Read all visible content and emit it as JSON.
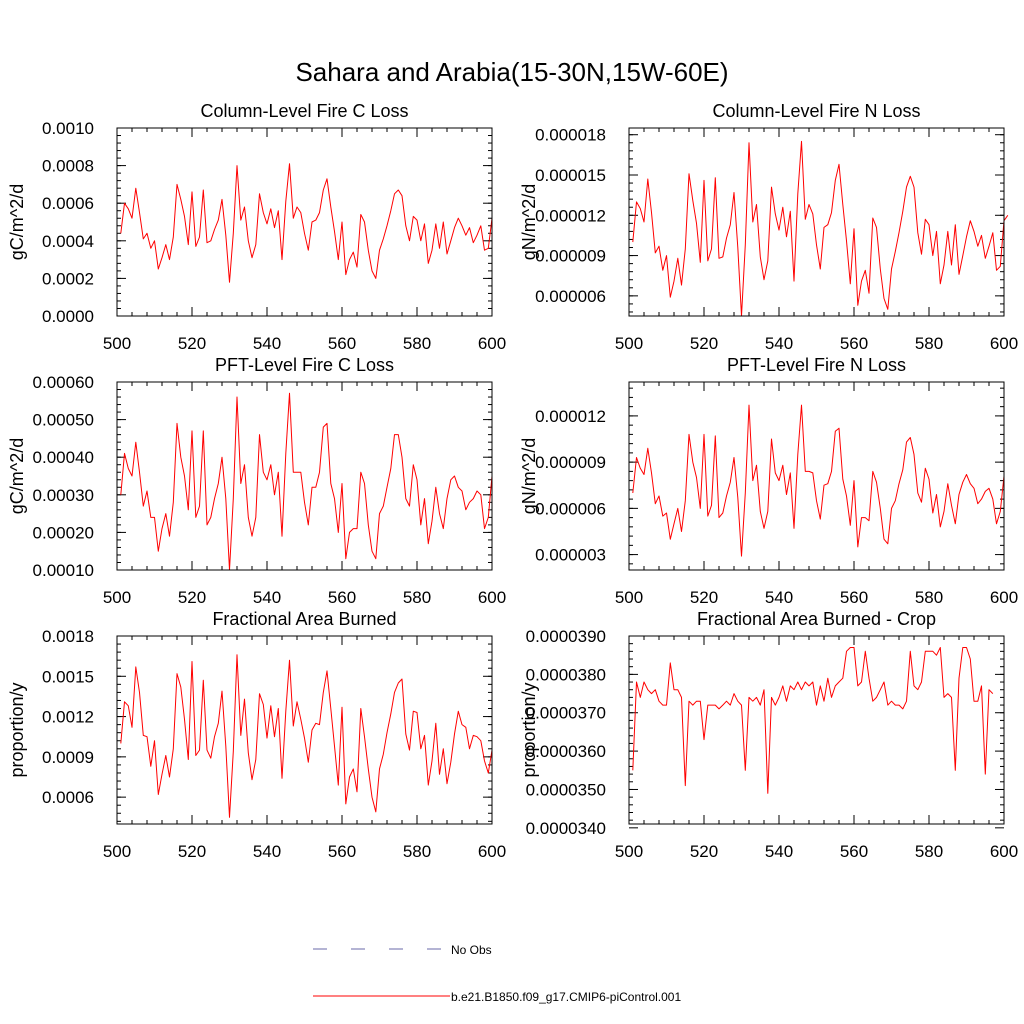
{
  "figure": {
    "title": "Sahara and Arabia(15-30N,15W-60E)"
  },
  "legend": {
    "entries": [
      {
        "label": "No Obs",
        "color": "#6a6aaa",
        "style": "dashed"
      },
      {
        "label": "b.e21.B1850.f09_g17.CMIP6-piControl.001",
        "color": "#ff0000",
        "style": "solid"
      }
    ]
  },
  "chart_data": [
    {
      "type": "line",
      "title": "Column-Level Fire C Loss",
      "xlabel": "",
      "ylabel": "gC/m^2/d",
      "xlim": [
        500,
        600
      ],
      "ylim": [
        0,
        0.001
      ],
      "x_ticks": [
        500,
        520,
        540,
        560,
        580,
        600
      ],
      "x_tick_labels": [
        "500",
        "520",
        "540",
        "560",
        "580",
        "600"
      ],
      "y_ticks": [
        0,
        0.0002,
        0.0004,
        0.0006,
        0.0008,
        0.001
      ],
      "y_tick_labels": [
        "0.0000",
        "0.0002",
        "0.0004",
        "0.0006",
        "0.0008",
        "0.0010"
      ],
      "x_start": 501,
      "series": [
        {
          "name": "b.e21.B1850.f09_g17.CMIP6-piControl.001",
          "color": "#ff0000",
          "values": [
            0.00044,
            0.0006,
            0.00057,
            0.00052,
            0.00068,
            0.00055,
            0.00041,
            0.00044,
            0.00036,
            0.0004,
            0.00025,
            0.00031,
            0.00038,
            0.0003,
            0.00042,
            0.0007,
            0.00062,
            0.00053,
            0.00038,
            0.00066,
            0.00037,
            0.00042,
            0.00067,
            0.00039,
            0.0004,
            0.00046,
            0.00051,
            0.00062,
            0.00043,
            0.00018,
            0.00044,
            0.0008,
            0.00051,
            0.00058,
            0.0004,
            0.00031,
            0.00038,
            0.00065,
            0.00055,
            0.00049,
            0.00057,
            0.00047,
            0.00056,
            0.0003,
            0.00061,
            0.00081,
            0.00052,
            0.00058,
            0.00055,
            0.00044,
            0.00035,
            0.0005,
            0.00051,
            0.00055,
            0.00067,
            0.00073,
            0.00058,
            0.00045,
            0.0003,
            0.0005,
            0.00022,
            0.0003,
            0.00034,
            0.00026,
            0.00054,
            0.0005,
            0.00035,
            0.00024,
            0.0002,
            0.00035,
            0.00041,
            0.00048,
            0.00056,
            0.00065,
            0.00067,
            0.00064,
            0.00048,
            0.0004,
            0.00053,
            0.00051,
            0.0004,
            0.00049,
            0.00028,
            0.00035,
            0.00049,
            0.00036,
            0.0005,
            0.00033,
            0.0004,
            0.00047,
            0.00052,
            0.00048,
            0.00043,
            0.00047,
            0.00039,
            0.00043,
            0.00048,
            0.00035,
            0.00036,
            0.00052
          ]
        }
      ]
    },
    {
      "type": "line",
      "title": "Column-Level Fire N Loss",
      "xlabel": "",
      "ylabel": "gN/m^2/d",
      "xlim": [
        500,
        600
      ],
      "ylim": [
        4.5e-06,
        1.85e-05
      ],
      "x_ticks": [
        500,
        520,
        540,
        560,
        580,
        600
      ],
      "x_tick_labels": [
        "500",
        "520",
        "540",
        "560",
        "580",
        "600"
      ],
      "y_ticks": [
        6e-06,
        9e-06,
        1.2e-05,
        1.5e-05,
        1.8e-05
      ],
      "y_tick_labels": [
        "0.000006",
        "0.000009",
        "0.000012",
        "0.000015",
        "0.000018"
      ],
      "x_start": 501,
      "series": [
        {
          "name": "b.e21.B1850.f09_g17.CMIP6-piControl.001",
          "color": "#ff0000",
          "values": [
            1e-05,
            1.3e-05,
            1.25e-05,
            1.15e-05,
            1.47e-05,
            1.22e-05,
            9.2e-06,
            9.7e-06,
            7.9e-06,
            9e-06,
            5.9e-06,
            7.1e-06,
            8.8e-06,
            6.8e-06,
            9.5e-06,
            1.51e-05,
            1.31e-05,
            1.14e-05,
            8.5e-06,
            1.46e-05,
            8.6e-06,
            9.5e-06,
            1.48e-05,
            8.8e-06,
            8.9e-06,
            1.03e-05,
            1.13e-05,
            1.37e-05,
            9.6e-06,
            4.5e-06,
            9.8e-06,
            1.74e-05,
            1.15e-05,
            1.28e-05,
            8.9e-06,
            7.2e-06,
            8.6e-06,
            1.41e-05,
            1.21e-05,
            1.09e-05,
            1.26e-05,
            1.04e-05,
            1.23e-05,
            7.1e-06,
            1.36e-05,
            1.75e-05,
            1.17e-05,
            1.28e-05,
            1.21e-05,
            9.8e-06,
            8e-06,
            1.11e-05,
            1.13e-05,
            1.22e-05,
            1.46e-05,
            1.58e-05,
            1.28e-05,
            1.01e-05,
            6.9e-06,
            1.1e-05,
            5.3e-06,
            7.1e-06,
            7.9e-06,
            6.2e-06,
            1.18e-05,
            1.11e-05,
            8e-06,
            5.8e-06,
            5e-06,
            8e-06,
            9.3e-06,
            1.07e-05,
            1.23e-05,
            1.41e-05,
            1.49e-05,
            1.41e-05,
            1.07e-05,
            9.1e-06,
            1.17e-05,
            1.13e-05,
            9e-06,
            1.08e-05,
            6.9e-06,
            8.3e-06,
            1.08e-05,
            8.3e-06,
            1.13e-05,
            7.6e-06,
            9e-06,
            1.04e-05,
            1.16e-05,
            1.08e-05,
            9.7e-06,
            1.05e-05,
            8.8e-06,
            9.7e-06,
            1.07e-05,
            7.9e-06,
            8.2e-06,
            1.16e-05,
            1.2e-05
          ]
        }
      ]
    },
    {
      "type": "line",
      "title": "PFT-Level Fire C Loss",
      "xlabel": "",
      "ylabel": "gC/m^2/d",
      "xlim": [
        500,
        600
      ],
      "ylim": [
        0.0001,
        0.0006
      ],
      "x_ticks": [
        500,
        520,
        540,
        560,
        580,
        600
      ],
      "x_tick_labels": [
        "500",
        "520",
        "540",
        "560",
        "580",
        "600"
      ],
      "y_ticks": [
        0.0001,
        0.0002,
        0.0003,
        0.0004,
        0.0005,
        0.0006
      ],
      "y_tick_labels": [
        "0.00010",
        "0.00020",
        "0.00030",
        "0.00040",
        "0.00050",
        "0.00060"
      ],
      "x_start": 501,
      "series": [
        {
          "name": "b.e21.B1850.f09_g17.CMIP6-piControl.001",
          "color": "#ff0000",
          "values": [
            0.0003,
            0.00041,
            0.00037,
            0.00035,
            0.00044,
            0.00036,
            0.00027,
            0.00031,
            0.00024,
            0.00024,
            0.00015,
            0.00021,
            0.00025,
            0.00019,
            0.00028,
            0.00049,
            0.0004,
            0.00035,
            0.00026,
            0.00047,
            0.00024,
            0.00027,
            0.00047,
            0.00022,
            0.00024,
            0.00029,
            0.00033,
            0.0004,
            0.00029,
            0.0001,
            0.00029,
            0.00056,
            0.00033,
            0.00038,
            0.00024,
            0.00019,
            0.00024,
            0.00046,
            0.00036,
            0.00034,
            0.00038,
            0.0003,
            0.00036,
            0.00019,
            0.00041,
            0.00057,
            0.00036,
            0.00036,
            0.00036,
            0.00028,
            0.00022,
            0.00032,
            0.00032,
            0.00036,
            0.00048,
            0.00049,
            0.00033,
            0.00029,
            0.0002,
            0.00033,
            0.00013,
            0.0002,
            0.00021,
            0.00021,
            0.00036,
            0.00033,
            0.00022,
            0.00015,
            0.00013,
            0.00025,
            0.00027,
            0.00032,
            0.00037,
            0.00046,
            0.00046,
            0.0004,
            0.00029,
            0.00027,
            0.00038,
            0.00034,
            0.00022,
            0.00029,
            0.00017,
            0.00023,
            0.00032,
            0.00025,
            0.00021,
            0.00029,
            0.00034,
            0.00035,
            0.00032,
            0.00031,
            0.00026,
            0.00028,
            0.00029,
            0.00031,
            0.0003,
            0.00021,
            0.00024,
            0.00035
          ]
        }
      ]
    },
    {
      "type": "line",
      "title": "PFT-Level Fire N Loss",
      "xlabel": "",
      "ylabel": "gN/m^2/d",
      "xlim": [
        500,
        600
      ],
      "ylim": [
        2e-06,
        1.42e-05
      ],
      "x_ticks": [
        500,
        520,
        540,
        560,
        580,
        600
      ],
      "x_tick_labels": [
        "500",
        "520",
        "540",
        "560",
        "580",
        "600"
      ],
      "y_ticks": [
        3e-06,
        6e-06,
        9e-06,
        1.2e-05
      ],
      "y_tick_labels": [
        "0.000003",
        "0.000006",
        "0.000009",
        "0.000012"
      ],
      "x_start": 501,
      "series": [
        {
          "name": "b.e21.B1850.f09_g17.CMIP6-piControl.001",
          "color": "#ff0000",
          "values": [
            7e-06,
            9.3e-06,
            8.6e-06,
            8.2e-06,
            9.9e-06,
            8.3e-06,
            6.3e-06,
            6.8e-06,
            5.5e-06,
            5.7e-06,
            4e-06,
            5e-06,
            6e-06,
            4.5e-06,
            6.5e-06,
            1.08e-05,
            9e-06,
            8e-06,
            6e-06,
            1.08e-05,
            5.5e-06,
            6.2e-06,
            1.07e-05,
            5.4e-06,
            5.7e-06,
            6.8e-06,
            7.7e-06,
            9.3e-06,
            6.7e-06,
            2.9e-06,
            7e-06,
            1.27e-05,
            7.8e-06,
            8.8e-06,
            5.8e-06,
            4.7e-06,
            5.8e-06,
            1.05e-05,
            8.3e-06,
            7.8e-06,
            8.8e-06,
            6.9e-06,
            8.3e-06,
            4.7e-06,
            9.5e-06,
            1.27e-05,
            8.4e-06,
            8.4e-06,
            8.3e-06,
            6.5e-06,
            5.3e-06,
            7.5e-06,
            7.6e-06,
            8.4e-06,
            1.1e-05,
            1.12e-05,
            7.9e-06,
            6.8e-06,
            4.9e-06,
            7.8e-06,
            3.5e-06,
            5.4e-06,
            5.4e-06,
            5.2e-06,
            8.4e-06,
            7.7e-06,
            6e-06,
            4e-06,
            3.7e-06,
            6e-06,
            6.5e-06,
            7.6e-06,
            8.5e-06,
            1.03e-05,
            1.06e-05,
            9.5e-06,
            7e-06,
            6.4e-06,
            8.6e-06,
            7.9e-06,
            5.7e-06,
            6.9e-06,
            4.8e-06,
            5.8e-06,
            7.6e-06,
            6.2e-06,
            5e-06,
            6.9e-06,
            7.7e-06,
            8.2e-06,
            7.6e-06,
            7.3e-06,
            6.3e-06,
            6.6e-06,
            7.1e-06,
            7.3e-06,
            6.6e-06,
            5e-06,
            5.8e-06,
            8.1e-06
          ]
        }
      ]
    },
    {
      "type": "line",
      "title": "Fractional Area Burned",
      "xlabel": "",
      "ylabel": "proportion/y",
      "xlim": [
        500,
        600
      ],
      "ylim": [
        0.0004,
        0.0018
      ],
      "x_ticks": [
        500,
        520,
        540,
        560,
        580,
        600
      ],
      "x_tick_labels": [
        "500",
        "520",
        "540",
        "560",
        "580",
        "600"
      ],
      "y_ticks": [
        0.0006,
        0.0009,
        0.0012,
        0.0015,
        0.0018
      ],
      "y_tick_labels": [
        "0.0006",
        "0.0009",
        "0.0012",
        "0.0015",
        "0.0018"
      ],
      "x_start": 501,
      "series": [
        {
          "name": "b.e21.B1850.f09_g17.CMIP6-piControl.001",
          "color": "#ff0000",
          "values": [
            0.001,
            0.00131,
            0.00128,
            0.00112,
            0.00157,
            0.00138,
            0.00106,
            0.00105,
            0.00083,
            0.00102,
            0.00062,
            0.00077,
            0.00091,
            0.00075,
            0.00096,
            0.00152,
            0.00142,
            0.00118,
            0.00088,
            0.00161,
            0.00091,
            0.00095,
            0.00147,
            0.00095,
            0.00089,
            0.00105,
            0.00115,
            0.00139,
            0.00098,
            0.00045,
            0.00094,
            0.00166,
            0.00106,
            0.00133,
            0.00093,
            0.00073,
            0.00088,
            0.00137,
            0.00129,
            0.00104,
            0.00128,
            0.00105,
            0.00126,
            0.00074,
            0.00124,
            0.00162,
            0.00113,
            0.00131,
            0.00118,
            0.00104,
            0.00086,
            0.0011,
            0.00115,
            0.00114,
            0.00138,
            0.00154,
            0.00126,
            0.00098,
            0.00069,
            0.00127,
            0.00055,
            0.00075,
            0.00081,
            0.00064,
            0.00126,
            0.00105,
            0.00081,
            0.0006,
            0.00049,
            0.00081,
            0.00092,
            0.00108,
            0.00122,
            0.00138,
            0.00145,
            0.00148,
            0.00107,
            0.00095,
            0.00124,
            0.00123,
            0.00096,
            0.00106,
            0.00069,
            0.00087,
            0.00115,
            0.00077,
            0.00096,
            0.0007,
            0.00086,
            0.00107,
            0.00124,
            0.00114,
            0.00112,
            0.00096,
            0.00106,
            0.00105,
            0.00102,
            0.00087,
            0.00078,
            0.00095
          ]
        }
      ]
    },
    {
      "type": "line",
      "title": "Fractional Area Burned - Crop",
      "xlabel": "",
      "ylabel": "proportion/y",
      "xlim": [
        500,
        600
      ],
      "ylim": [
        3.41e-05,
        3.9e-05
      ],
      "x_ticks": [
        500,
        520,
        540,
        560,
        580,
        600
      ],
      "x_tick_labels": [
        "500",
        "520",
        "540",
        "560",
        "580",
        "600"
      ],
      "y_ticks": [
        3.4e-05,
        3.5e-05,
        3.6e-05,
        3.7e-05,
        3.8e-05,
        3.9e-05
      ],
      "y_tick_labels": [
        "0.0000340",
        "0.0000350",
        "0.0000360",
        "0.0000370",
        "0.0000380",
        "0.0000390"
      ],
      "x_start": 501,
      "series": [
        {
          "name": "b.e21.B1850.f09_g17.CMIP6-piControl.001",
          "color": "#ff0000",
          "values": [
            3.55e-05,
            3.78e-05,
            3.74e-05,
            3.78e-05,
            3.76e-05,
            3.75e-05,
            3.76e-05,
            3.73e-05,
            3.72e-05,
            3.72e-05,
            3.83e-05,
            3.76e-05,
            3.76e-05,
            3.74e-05,
            3.51e-05,
            3.73e-05,
            3.72e-05,
            3.73e-05,
            3.73e-05,
            3.63e-05,
            3.72e-05,
            3.72e-05,
            3.72e-05,
            3.71e-05,
            3.72e-05,
            3.73e-05,
            3.72e-05,
            3.75e-05,
            3.73e-05,
            3.72e-05,
            3.55e-05,
            3.74e-05,
            3.73e-05,
            3.74e-05,
            3.72e-05,
            3.76e-05,
            3.49e-05,
            3.74e-05,
            3.72e-05,
            3.74e-05,
            3.77e-05,
            3.73e-05,
            3.77e-05,
            3.76e-05,
            3.78e-05,
            3.76e-05,
            3.78e-05,
            3.77e-05,
            3.78e-05,
            3.72e-05,
            3.77e-05,
            3.73e-05,
            3.79e-05,
            3.74e-05,
            3.77e-05,
            3.78e-05,
            3.79e-05,
            3.86e-05,
            3.87e-05,
            3.87e-05,
            3.77e-05,
            3.78e-05,
            3.86e-05,
            3.79e-05,
            3.73e-05,
            3.74e-05,
            3.76e-05,
            3.78e-05,
            3.72e-05,
            3.73e-05,
            3.72e-05,
            3.72e-05,
            3.71e-05,
            3.73e-05,
            3.86e-05,
            3.77e-05,
            3.76e-05,
            3.78e-05,
            3.86e-05,
            3.86e-05,
            3.86e-05,
            3.85e-05,
            3.87e-05,
            3.74e-05,
            3.75e-05,
            3.74e-05,
            3.55e-05,
            3.79e-05,
            3.87e-05,
            3.87e-05,
            3.84e-05,
            3.73e-05,
            3.73e-05,
            3.77e-05,
            3.54e-05,
            3.76e-05,
            3.75e-05
          ]
        }
      ]
    }
  ]
}
